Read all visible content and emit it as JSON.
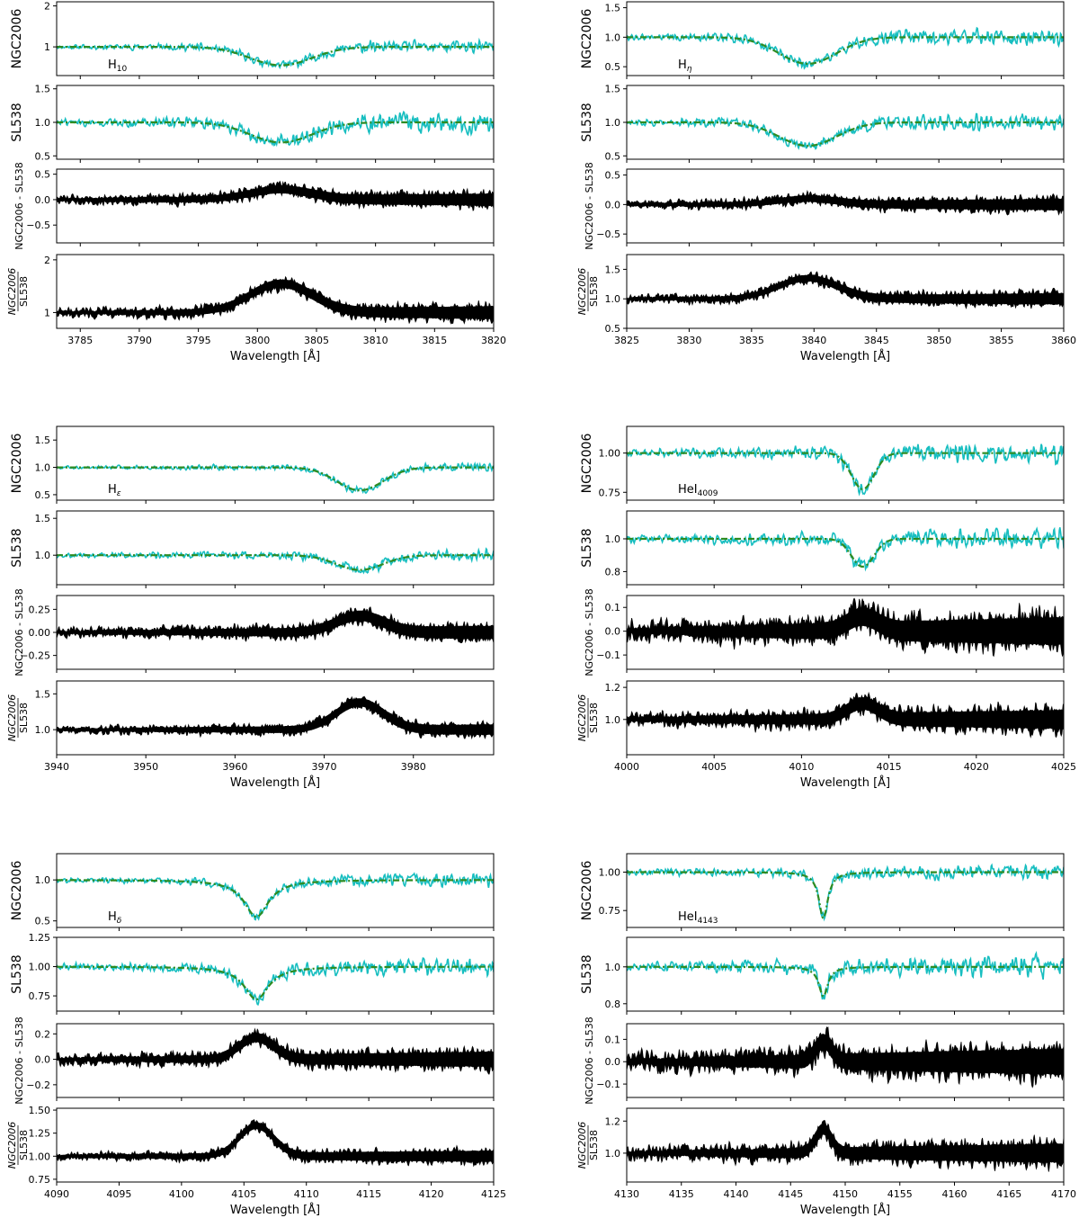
{
  "colors": {
    "observed": "#17bec0",
    "model": "#2e8b22",
    "residual": "#000000",
    "axis": "#000000"
  },
  "chart_data": [
    {
      "type": "line",
      "line_label": "H",
      "line_sub": "10",
      "line_sub_italic": false,
      "xlabel": "Wavelength [Å]",
      "xlim": [
        3783,
        3820
      ],
      "xticks": [
        3785,
        3790,
        3795,
        3800,
        3805,
        3810,
        3815,
        3820
      ],
      "center": 3802.0,
      "width": 2.6,
      "shape": "gauss",
      "panels": [
        {
          "ylabel": "NGC2006",
          "ylim": [
            0.3,
            2.1
          ],
          "yticks": [
            1,
            2
          ],
          "tick_labels": [
            "1",
            "2"
          ],
          "depth": 0.45,
          "noise": 0.1,
          "series": [
            "observed",
            "model"
          ]
        },
        {
          "ylabel": "SL538",
          "ylim": [
            0.45,
            1.55
          ],
          "yticks": [
            0.5,
            1.0,
            1.5
          ],
          "tick_labels": [
            "0.5",
            "1.0",
            "1.5"
          ],
          "depth": 0.3,
          "noise": 0.1,
          "series": [
            "observed",
            "model"
          ]
        },
        {
          "ylabel": "NGC2006 - SL538",
          "ylim": [
            -0.85,
            0.6
          ],
          "yticks": [
            -0.5,
            0.0,
            0.5
          ],
          "tick_labels": [
            "−0.5",
            "0.0",
            "0.5"
          ],
          "base": 0.0,
          "bump": 0.2,
          "noise": 0.1,
          "series": [
            "difference"
          ]
        },
        {
          "ylabel": "NGC2006 / SL538",
          "ylim": [
            0.7,
            2.1
          ],
          "yticks": [
            1,
            2
          ],
          "tick_labels": [
            "1",
            "2"
          ],
          "base": 1.0,
          "bump": 0.55,
          "noise": 0.1,
          "series": [
            "ratio"
          ]
        }
      ]
    },
    {
      "type": "line",
      "line_label": "H",
      "line_sub": "η",
      "line_sub_italic": true,
      "xlabel": "Wavelength [Å]",
      "xlim": [
        3825,
        3860
      ],
      "xticks": [
        3825,
        3830,
        3835,
        3840,
        3845,
        3850,
        3855,
        3860
      ],
      "center": 3839.5,
      "width": 2.3,
      "shape": "gauss",
      "panels": [
        {
          "ylabel": "NGC2006",
          "ylim": [
            0.35,
            1.6
          ],
          "yticks": [
            0.5,
            1.0,
            1.5
          ],
          "tick_labels": [
            "0.5",
            "1.0",
            "1.5"
          ],
          "depth": 0.45,
          "noise": 0.09,
          "series": [
            "observed",
            "model"
          ]
        },
        {
          "ylabel": "SL538",
          "ylim": [
            0.45,
            1.55
          ],
          "yticks": [
            0.5,
            1.0,
            1.5
          ],
          "tick_labels": [
            "0.5",
            "1.0",
            "1.5"
          ],
          "depth": 0.35,
          "noise": 0.08,
          "series": [
            "observed",
            "model"
          ]
        },
        {
          "ylabel": "NGC2006 - SL538",
          "ylim": [
            -0.65,
            0.6
          ],
          "yticks": [
            -0.5,
            0.0,
            0.5
          ],
          "tick_labels": [
            "−0.5",
            "0.0",
            "0.5"
          ],
          "base": 0.0,
          "bump": 0.1,
          "noise": 0.08,
          "series": [
            "difference"
          ]
        },
        {
          "ylabel": "NGC2006 / SL538",
          "ylim": [
            0.5,
            1.75
          ],
          "yticks": [
            0.5,
            1.0,
            1.5
          ],
          "tick_labels": [
            "0.5",
            "1.0",
            "1.5"
          ],
          "base": 1.0,
          "bump": 0.35,
          "noise": 0.08,
          "series": [
            "ratio"
          ]
        }
      ]
    },
    {
      "type": "line",
      "line_label": "H",
      "line_sub": "ε",
      "line_sub_italic": true,
      "xlabel": "Wavelength [Å]",
      "xlim": [
        3940,
        3989
      ],
      "xticks": [
        3940,
        3950,
        3960,
        3970,
        3980
      ],
      "center": 3974.0,
      "width": 2.6,
      "shape": "gauss",
      "panels": [
        {
          "ylabel": "NGC2006",
          "ylim": [
            0.4,
            1.75
          ],
          "yticks": [
            0.5,
            1.0,
            1.5
          ],
          "tick_labels": [
            "0.5",
            "1.0",
            "1.5"
          ],
          "depth": 0.42,
          "noise": 0.05,
          "series": [
            "observed",
            "model"
          ]
        },
        {
          "ylabel": "SL538",
          "ylim": [
            0.6,
            1.6
          ],
          "yticks": [
            1.0,
            1.5
          ],
          "tick_labels": [
            "1.0",
            "1.5"
          ],
          "depth": 0.2,
          "noise": 0.05,
          "series": [
            "observed",
            "model"
          ]
        },
        {
          "ylabel": "NGC2006 - SL538",
          "ylim": [
            -0.4,
            0.4
          ],
          "yticks": [
            -0.25,
            0.0,
            0.25
          ],
          "tick_labels": [
            "−0.25",
            "0.00",
            "0.25"
          ],
          "base": 0.0,
          "bump": 0.18,
          "noise": 0.06,
          "series": [
            "difference"
          ]
        },
        {
          "ylabel": "NGC2006 / SL538",
          "ylim": [
            0.65,
            1.68
          ],
          "yticks": [
            1.0,
            1.5
          ],
          "tick_labels": [
            "1.0",
            "1.5"
          ],
          "base": 1.0,
          "bump": 0.38,
          "noise": 0.06,
          "series": [
            "ratio"
          ]
        }
      ]
    },
    {
      "type": "line",
      "line_label": "HeI",
      "line_sub": "4009",
      "line_sub_italic": false,
      "xlabel": "Wavelength [Å]",
      "xlim": [
        4000,
        4025
      ],
      "xticks": [
        4000,
        4005,
        4010,
        4015,
        4020,
        4025
      ],
      "center": 4013.5,
      "width": 0.65,
      "shape": "gauss",
      "panels": [
        {
          "ylabel": "NGC2006",
          "ylim": [
            0.7,
            1.17
          ],
          "yticks": [
            0.75,
            1.0
          ],
          "tick_labels": [
            "0.75",
            "1.00"
          ],
          "depth": 0.23,
          "noise": 0.04,
          "series": [
            "observed",
            "model"
          ]
        },
        {
          "ylabel": "SL538",
          "ylim": [
            0.72,
            1.17
          ],
          "yticks": [
            0.8,
            1.0
          ],
          "tick_labels": [
            "0.8",
            "1.0"
          ],
          "depth": 0.17,
          "noise": 0.04,
          "series": [
            "observed",
            "model"
          ]
        },
        {
          "ylabel": "NGC2006 - SL538",
          "ylim": [
            -0.16,
            0.15
          ],
          "yticks": [
            -0.1,
            0.0,
            0.1
          ],
          "tick_labels": [
            "−0.1",
            "0.0",
            "0.1"
          ],
          "base": 0.0,
          "bump": 0.06,
          "noise": 0.05,
          "series": [
            "difference"
          ]
        },
        {
          "ylabel": "NGC2006 / SL538",
          "ylim": [
            0.78,
            1.24
          ],
          "yticks": [
            1.0,
            1.2
          ],
          "tick_labels": [
            "1.0",
            "1.2"
          ],
          "base": 1.0,
          "bump": 0.1,
          "noise": 0.05,
          "series": [
            "ratio"
          ]
        }
      ]
    },
    {
      "type": "line",
      "line_label": "H",
      "line_sub": "δ",
      "line_sub_italic": true,
      "xlabel": "Wavelength [Å]",
      "xlim": [
        4090,
        4125
      ],
      "xticks": [
        4090,
        4095,
        4100,
        4105,
        4110,
        4115,
        4120,
        4125
      ],
      "center": 4106.0,
      "width": 1.2,
      "shape": "lorentz",
      "panels": [
        {
          "ylabel": "NGC2006",
          "ylim": [
            0.42,
            1.32
          ],
          "yticks": [
            0.5,
            1.0
          ],
          "tick_labels": [
            "0.5",
            "1.0"
          ],
          "depth": 0.45,
          "noise": 0.05,
          "series": [
            "observed",
            "model"
          ]
        },
        {
          "ylabel": "SL538",
          "ylim": [
            0.62,
            1.25
          ],
          "yticks": [
            0.75,
            1.0,
            1.25
          ],
          "tick_labels": [
            "0.75",
            "1.00",
            "1.25"
          ],
          "depth": 0.28,
          "noise": 0.05,
          "series": [
            "observed",
            "model"
          ]
        },
        {
          "ylabel": "NGC2006 - SL538",
          "ylim": [
            -0.3,
            0.28
          ],
          "yticks": [
            -0.2,
            0.0,
            0.2
          ],
          "tick_labels": [
            "−0.2",
            "0.0",
            "0.2"
          ],
          "base": 0.0,
          "bump": 0.17,
          "noise": 0.05,
          "series": [
            "difference"
          ]
        },
        {
          "ylabel": "NGC2006 / SL538",
          "ylim": [
            0.72,
            1.52
          ],
          "yticks": [
            0.75,
            1.0,
            1.25,
            1.5
          ],
          "tick_labels": [
            "0.75",
            "1.00",
            "1.25",
            "1.50"
          ],
          "base": 1.0,
          "bump": 0.33,
          "noise": 0.05,
          "series": [
            "ratio"
          ]
        }
      ]
    },
    {
      "type": "line",
      "line_label": "HeI",
      "line_sub": "4143",
      "line_sub_italic": false,
      "xlabel": "Wavelength [Å]",
      "xlim": [
        4130,
        4170
      ],
      "xticks": [
        4130,
        4135,
        4140,
        4145,
        4150,
        4155,
        4160,
        4165,
        4170
      ],
      "center": 4148.0,
      "width": 0.5,
      "shape": "lorentz",
      "panels": [
        {
          "ylabel": "NGC2006",
          "ylim": [
            0.64,
            1.12
          ],
          "yticks": [
            0.75,
            1.0
          ],
          "tick_labels": [
            "0.75",
            "1.00"
          ],
          "depth": 0.3,
          "noise": 0.035,
          "series": [
            "observed",
            "model"
          ]
        },
        {
          "ylabel": "SL538",
          "ylim": [
            0.76,
            1.16
          ],
          "yticks": [
            0.8,
            1.0
          ],
          "tick_labels": [
            "0.8",
            "1.0"
          ],
          "depth": 0.16,
          "noise": 0.04,
          "series": [
            "observed",
            "model"
          ]
        },
        {
          "ylabel": "NGC2006 - SL538",
          "ylim": [
            -0.16,
            0.17
          ],
          "yticks": [
            -0.1,
            0.0,
            0.1
          ],
          "tick_labels": [
            "−0.1",
            "0.0",
            "0.1"
          ],
          "base": 0.0,
          "bump": 0.09,
          "noise": 0.05,
          "series": [
            "difference"
          ]
        },
        {
          "ylabel": "NGC2006 / SL538",
          "ylim": [
            0.82,
            1.28
          ],
          "yticks": [
            1.0,
            1.2
          ],
          "tick_labels": [
            "1.0",
            "1.2"
          ],
          "base": 1.0,
          "bump": 0.15,
          "noise": 0.05,
          "series": [
            "ratio"
          ]
        }
      ]
    }
  ]
}
